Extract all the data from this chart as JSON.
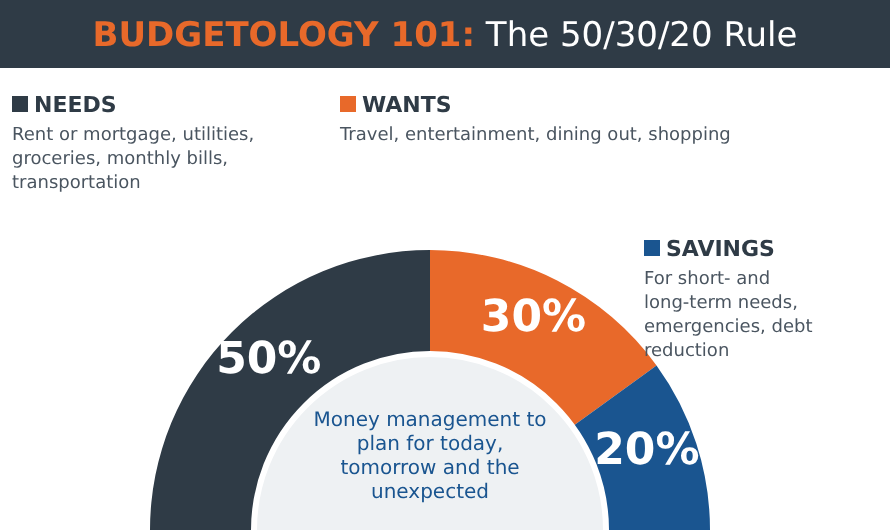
{
  "chart_data": {
    "type": "donut",
    "title": "BUDGETOLOGY 101: The 50/30/20 Rule",
    "categories": [
      "NEEDS",
      "WANTS",
      "SAVINGS"
    ],
    "values": [
      50,
      30,
      20
    ],
    "colors": [
      "#2f3b46",
      "#e8692a",
      "#1a5590"
    ],
    "value_labels": [
      "50%",
      "30%",
      "20%"
    ],
    "legend": "top",
    "annotations": [
      "Rent or mortgage, utilities, groceries, monthly bills, transportation",
      "Travel, entertainment, dining out, shopping",
      "For short- and long-term needs, emergencies, debt reduction",
      "Money management to plan for today, tomorrow and the unexpected"
    ]
  }
}
